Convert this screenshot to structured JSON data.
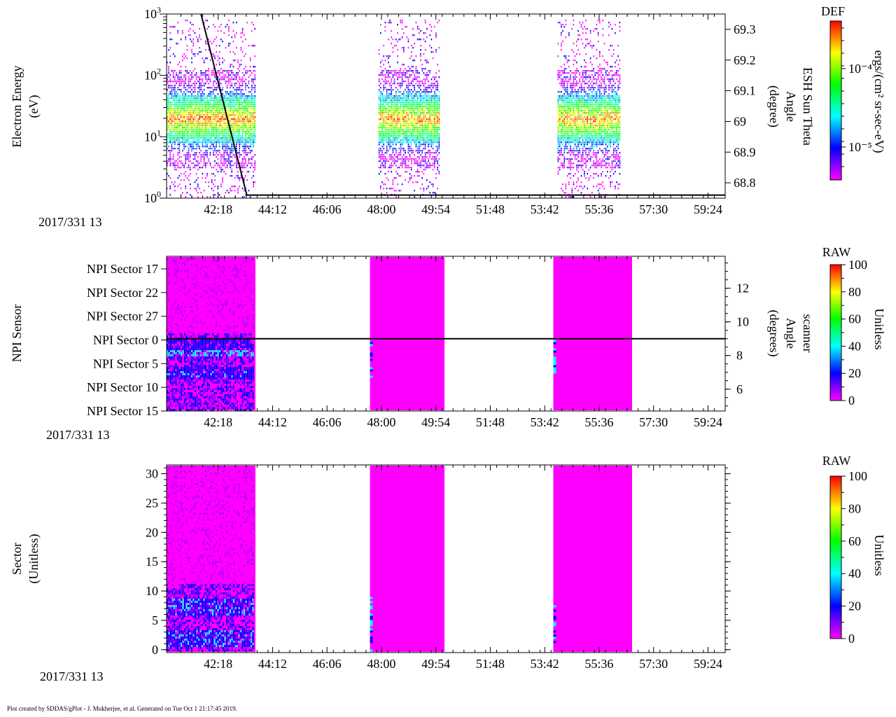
{
  "footer": "Plot created by SDDAS/gPlot - J. Mukherjee, et al.  Generated on Tue Oct 1 21:17:45 2019.",
  "time_axis": {
    "date_label": "2017/331 13",
    "tick_labels": [
      "42:18",
      "44:12",
      "46:06",
      "48:00",
      "49:54",
      "51:48",
      "53:42",
      "55:36",
      "57:30",
      "59:24"
    ],
    "range_minutes": [
      40.5,
      60.0
    ]
  },
  "colormap": [
    "#ff00ff",
    "#8000ff",
    "#0000ff",
    "#0080ff",
    "#00ffff",
    "#00ff80",
    "#00ff00",
    "#80ff00",
    "#ffff00",
    "#ff8000",
    "#ff0000"
  ],
  "chart_data": [
    {
      "type": "heatmap",
      "name": "panel-1",
      "ylabel_lines": [
        "Electron Energy",
        "(eV)"
      ],
      "yticks_log": [
        {
          "value": 1,
          "base": "10",
          "exp": "0"
        },
        {
          "value": 10,
          "base": "10",
          "exp": "1"
        },
        {
          "value": 100,
          "base": "10",
          "exp": "2"
        },
        {
          "value": 1000,
          "base": "10",
          "exp": "3"
        }
      ],
      "ylim": [
        1,
        1000
      ],
      "data_blocks_minutes": [
        [
          40.5,
          43.6
        ],
        [
          47.9,
          50.05
        ],
        [
          54.15,
          56.35
        ]
      ],
      "peak_energy_eV": 20,
      "right_axis": {
        "label_lines": [
          "ESH Sun Theta",
          "Angle",
          "(degree)"
        ],
        "ticks": [
          "68.8",
          "68.9",
          "69",
          "69.1",
          "69.2",
          "69.3"
        ],
        "tick_values": [
          68.8,
          68.9,
          69.0,
          69.1,
          69.2,
          69.3
        ],
        "ylim": [
          68.75,
          69.35
        ],
        "line_points": [
          [
            41.7,
            69.35
          ],
          [
            43.3,
            68.76
          ],
          [
            60.0,
            68.76
          ]
        ]
      },
      "colorbar": {
        "title": "DEF",
        "label": "ergs/(cm² sr-sec-eV)",
        "ticks": [
          "10⁻⁴",
          "10⁻⁵"
        ]
      }
    },
    {
      "type": "heatmap",
      "name": "panel-2",
      "ylabel_lines": [
        "NPI Sensor"
      ],
      "yticks": [
        "NPI Sector 17",
        "NPI Sector 22",
        "NPI Sector 27",
        "NPI Sector 0",
        "NPI Sector 5",
        "NPI Sector 10",
        "NPI Sector 15"
      ],
      "data_blocks_minutes": [
        [
          40.5,
          43.6
        ],
        [
          47.6,
          50.2
        ],
        [
          54.0,
          56.75
        ]
      ],
      "right_axis": {
        "label_lines": [
          "scanner",
          "Angle",
          "(degrees)"
        ],
        "ticks": [
          "6",
          "8",
          "10",
          "12"
        ],
        "tick_values": [
          6,
          8,
          10,
          12
        ],
        "ylim": [
          4.7,
          13.9
        ],
        "line_value": 9.0
      },
      "colorbar": {
        "title": "RAW",
        "label": "Unitless",
        "ticks": [
          "100",
          "80",
          "60",
          "40",
          "20",
          "0"
        ]
      }
    },
    {
      "type": "heatmap",
      "name": "panel-3",
      "ylabel_lines": [
        "Sector",
        "(Unitless)"
      ],
      "yticks": [
        "0",
        "5",
        "10",
        "15",
        "20",
        "25",
        "30"
      ],
      "ylim": [
        -0.5,
        31.5
      ],
      "data_blocks_minutes": [
        [
          40.5,
          43.6
        ],
        [
          47.6,
          50.2
        ],
        [
          54.0,
          56.75
        ]
      ],
      "colorbar": {
        "title": "RAW",
        "label": "Unitless",
        "ticks": [
          "100",
          "80",
          "60",
          "40",
          "20",
          "0"
        ]
      }
    }
  ]
}
